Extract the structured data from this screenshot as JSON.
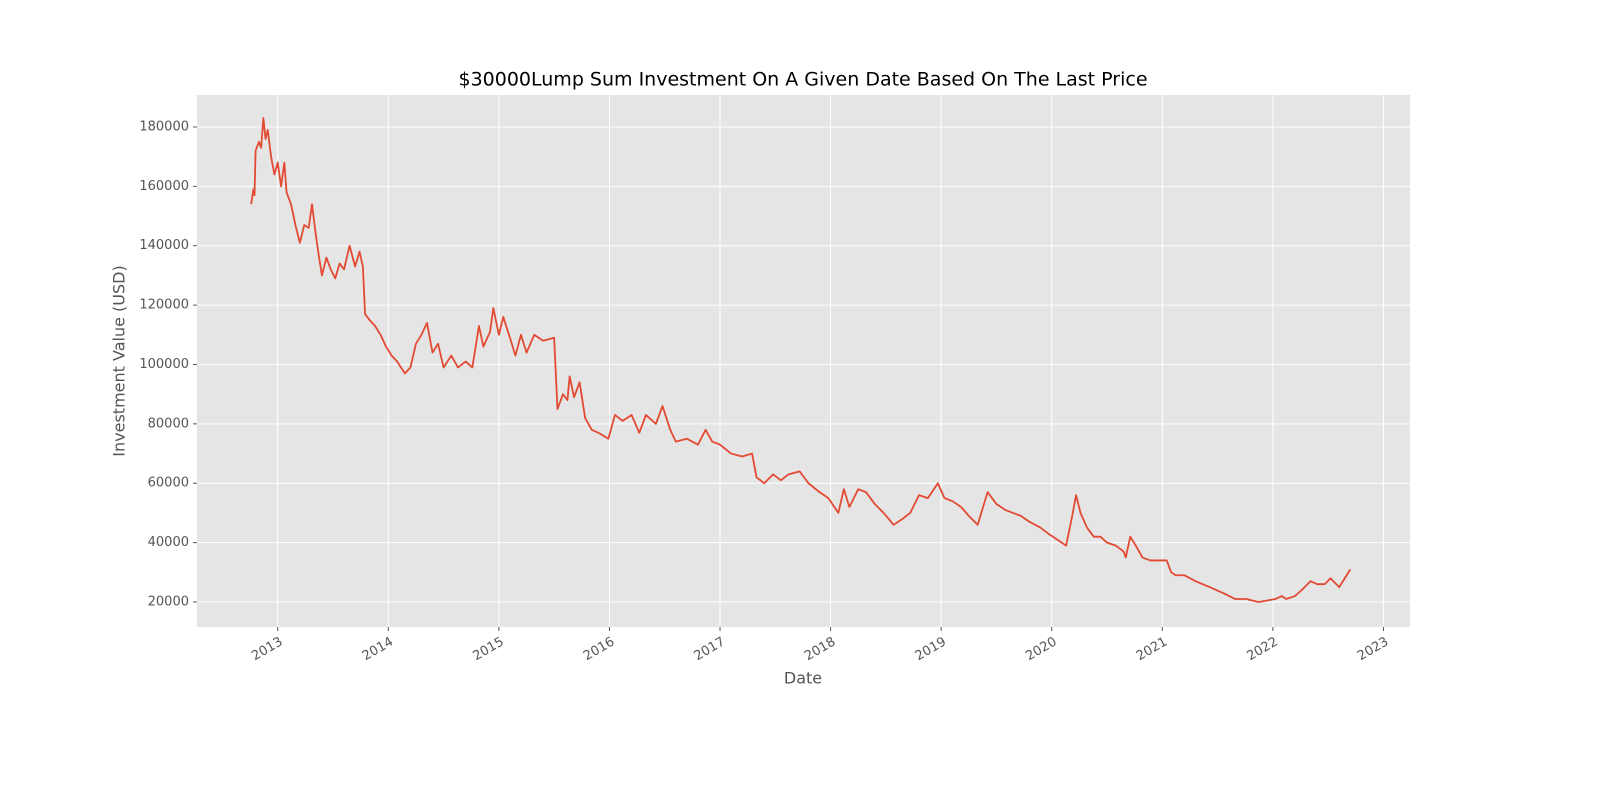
{
  "chart_data": {
    "type": "line",
    "title": "$30000Lump Sum Investment On A Given Date Based On The Last Price",
    "xlabel": "Date",
    "ylabel": "Investment Value (USD)",
    "color": "#e24a33",
    "grid": true,
    "xlim": [
      2012.27,
      2023.24
    ],
    "ylim": [
      11580,
      190770
    ],
    "xticks": [
      2013,
      2014,
      2015,
      2016,
      2017,
      2018,
      2019,
      2020,
      2021,
      2022,
      2023
    ],
    "yticks": [
      20000,
      40000,
      60000,
      80000,
      100000,
      120000,
      140000,
      160000,
      180000
    ],
    "x": [
      2012.76,
      2012.78,
      2012.79,
      2012.8,
      2012.83,
      2012.85,
      2012.87,
      2012.89,
      2012.91,
      2012.94,
      2012.97,
      2013.0,
      2013.03,
      2013.06,
      2013.08,
      2013.12,
      2013.16,
      2013.2,
      2013.24,
      2013.28,
      2013.31,
      2013.34,
      2013.37,
      2013.4,
      2013.44,
      2013.48,
      2013.52,
      2013.56,
      2013.6,
      2013.65,
      2013.7,
      2013.74,
      2013.77,
      2013.79,
      2013.83,
      2013.88,
      2013.93,
      2013.98,
      2014.03,
      2014.08,
      2014.15,
      2014.2,
      2014.25,
      2014.3,
      2014.35,
      2014.4,
      2014.45,
      2014.5,
      2014.57,
      2014.63,
      2014.7,
      2014.76,
      2014.82,
      2014.86,
      2014.92,
      2014.95,
      2015.0,
      2015.04,
      2015.1,
      2015.15,
      2015.2,
      2015.25,
      2015.32,
      2015.4,
      2015.5,
      2015.53,
      2015.58,
      2015.62,
      2015.64,
      2015.68,
      2015.73,
      2015.78,
      2015.84,
      2015.9,
      2015.99,
      2016.05,
      2016.12,
      2016.2,
      2016.27,
      2016.33,
      2016.42,
      2016.48,
      2016.55,
      2016.6,
      2016.7,
      2016.8,
      2016.87,
      2016.93,
      2017.0,
      2017.1,
      2017.2,
      2017.29,
      2017.33,
      2017.4,
      2017.48,
      2017.55,
      2017.62,
      2017.72,
      2017.8,
      2017.9,
      2017.98,
      2018.07,
      2018.12,
      2018.17,
      2018.25,
      2018.32,
      2018.4,
      2018.48,
      2018.57,
      2018.65,
      2018.72,
      2018.8,
      2018.88,
      2018.97,
      2019.03,
      2019.1,
      2019.18,
      2019.25,
      2019.33,
      2019.42,
      2019.5,
      2019.58,
      2019.65,
      2019.72,
      2019.8,
      2019.9,
      2019.97,
      2020.05,
      2020.13,
      2020.18,
      2020.22,
      2020.26,
      2020.32,
      2020.38,
      2020.44,
      2020.5,
      2020.58,
      2020.65,
      2020.67,
      2020.71,
      2020.76,
      2020.82,
      2020.89,
      2020.96,
      2021.04,
      2021.08,
      2021.12,
      2021.2,
      2021.3,
      2021.43,
      2021.55,
      2021.66,
      2021.76,
      2021.87,
      2021.95,
      2022.02,
      2022.08,
      2022.12,
      2022.2,
      2022.26,
      2022.34,
      2022.4,
      2022.47,
      2022.52,
      2022.6,
      2022.65,
      2022.7
    ],
    "values": [
      154000,
      159000,
      157000,
      172000,
      175000,
      173000,
      183000,
      176000,
      179000,
      170000,
      164000,
      168000,
      160000,
      168000,
      158000,
      154000,
      147000,
      141000,
      147000,
      146000,
      154000,
      145000,
      137000,
      130000,
      136000,
      132000,
      129000,
      134000,
      132000,
      140000,
      133000,
      138000,
      133000,
      117000,
      115000,
      113000,
      110000,
      106000,
      103000,
      101000,
      97000,
      99000,
      107000,
      110000,
      114000,
      104000,
      107000,
      99000,
      103000,
      99000,
      101000,
      99000,
      113000,
      106000,
      111000,
      119000,
      110000,
      116000,
      109000,
      103000,
      110000,
      104000,
      110000,
      108000,
      109000,
      85000,
      90000,
      88000,
      96000,
      89000,
      94000,
      82000,
      78000,
      77000,
      75000,
      83000,
      81000,
      83000,
      77000,
      83000,
      80000,
      86000,
      78000,
      74000,
      75000,
      73000,
      78000,
      74000,
      73000,
      70000,
      69000,
      70000,
      62000,
      60000,
      63000,
      61000,
      63000,
      64000,
      60000,
      57000,
      55000,
      50000,
      58000,
      52000,
      58000,
      57000,
      53000,
      50000,
      46000,
      48000,
      50000,
      56000,
      55000,
      60000,
      55000,
      54000,
      52000,
      49000,
      46000,
      57000,
      53000,
      51000,
      50000,
      49000,
      47000,
      45000,
      43000,
      41000,
      39000,
      48000,
      56000,
      50000,
      45000,
      42000,
      42000,
      40000,
      39000,
      37000,
      35000,
      42000,
      39000,
      35000,
      34000,
      34000,
      34000,
      30000,
      29000,
      29000,
      27000,
      25000,
      23000,
      21000,
      21000,
      20000,
      20500,
      21000,
      22000,
      21000,
      22000,
      24000,
      27000,
      26000,
      26000,
      28000,
      25000,
      28000,
      31000
    ]
  }
}
